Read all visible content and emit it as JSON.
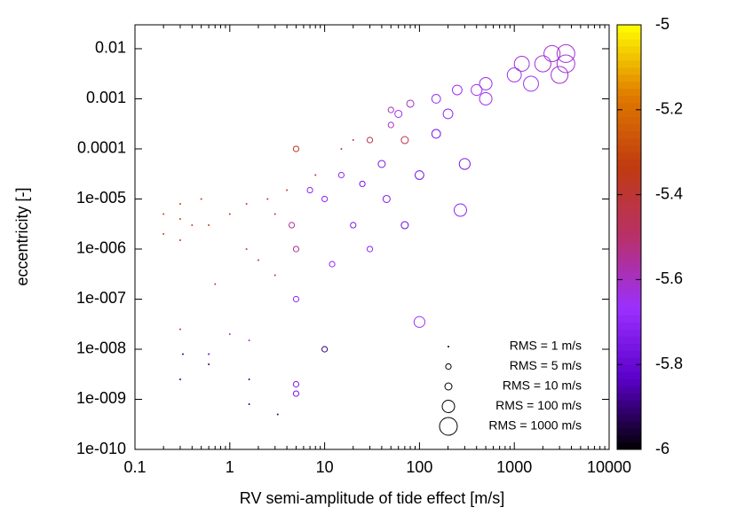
{
  "chart_data": {
    "type": "scatter",
    "xlabel": "RV semi-amplitude of tide effect [m/s]",
    "ylabel": "eccentricity [-]",
    "xscale": "log",
    "yscale": "log",
    "xlim": [
      0.1,
      10000
    ],
    "xticks": [
      0.1,
      1,
      10,
      100,
      1000,
      10000
    ],
    "ylim": [
      1e-10,
      0.03
    ],
    "yticks": [
      {
        "value": 1e-10,
        "label": "1e-010"
      },
      {
        "value": 1e-09,
        "label": "1e-009"
      },
      {
        "value": 1e-08,
        "label": "1e-008"
      },
      {
        "value": 1e-07,
        "label": "1e-007"
      },
      {
        "value": 1e-06,
        "label": "1e-006"
      },
      {
        "value": 1e-05,
        "label": "1e-005"
      },
      0.0001,
      0.001,
      0.01
    ],
    "clim": [
      -6,
      -5
    ],
    "cticks": [
      -6,
      -5.8,
      -5.6,
      -5.4,
      -5.2,
      -5
    ],
    "colormap": [
      "#000000",
      "#5a00c8",
      "#9b30ff",
      "#b8306a",
      "#c03a10",
      "#e07a00",
      "#ffff00"
    ],
    "x": [
      0.2,
      0.2,
      0.3,
      0.3,
      0.3,
      0.3,
      0.3,
      0.32,
      0.4,
      0.5,
      0.6,
      0.6,
      0.6,
      0.7,
      1,
      1,
      1.5,
      1.5,
      1.6,
      1.6,
      1.6,
      2,
      2.5,
      3,
      3,
      3.2,
      4,
      4.5,
      5,
      5,
      5,
      5,
      5,
      7,
      8,
      10,
      10,
      12,
      15,
      15,
      20,
      20,
      25,
      30,
      30,
      40,
      45,
      50,
      50,
      60,
      70,
      70,
      80,
      100,
      100,
      150,
      150,
      200,
      250,
      270,
      300,
      400,
      500,
      500,
      1000,
      1200,
      1500,
      2000,
      2500,
      3000,
      3500,
      3500
    ],
    "values": [
      5e-06,
      2e-06,
      8e-06,
      4e-06,
      1.5e-06,
      2.5e-08,
      2.5e-09,
      8e-09,
      3e-06,
      1e-05,
      3e-06,
      5e-09,
      8e-09,
      2e-07,
      5e-06,
      2e-08,
      8e-06,
      1e-06,
      2.5e-09,
      8e-10,
      1.5e-08,
      6e-07,
      1e-05,
      5e-06,
      3e-07,
      5e-10,
      1.5e-05,
      3e-06,
      1e-06,
      0.0001,
      2e-09,
      1.3e-09,
      1e-07,
      1.5e-05,
      3e-05,
      1e-08,
      1e-05,
      5e-07,
      0.0001,
      3e-05,
      0.00015,
      3e-06,
      2e-05,
      0.00015,
      1e-06,
      5e-05,
      1e-05,
      0.0006,
      0.0003,
      0.0005,
      0.00015,
      3e-06,
      0.0008,
      3.5e-08,
      3e-05,
      0.001,
      0.0002,
      0.0005,
      0.0015,
      6e-06,
      5e-05,
      0.0015,
      0.002,
      0.001,
      0.003,
      0.005,
      0.002,
      0.005,
      0.008,
      0.003,
      0.008,
      0.005
    ],
    "color_values": [
      -5.3,
      -5.3,
      -5.3,
      -5.3,
      -5.35,
      -5.45,
      -5.9,
      -5.9,
      -5.3,
      -5.35,
      -5.35,
      -5.9,
      -5.8,
      -5.4,
      -5.35,
      -5.6,
      -5.38,
      -5.38,
      -5.9,
      -5.9,
      -5.6,
      -5.4,
      -5.38,
      -5.4,
      -5.5,
      -5.9,
      -5.38,
      -5.55,
      -5.55,
      -5.35,
      -5.75,
      -5.75,
      -5.7,
      -5.7,
      -5.4,
      -5.9,
      -5.7,
      -5.7,
      -5.45,
      -5.7,
      -5.4,
      -5.75,
      -5.75,
      -5.45,
      -5.7,
      -5.75,
      -5.75,
      -5.6,
      -5.6,
      -5.65,
      -5.45,
      -5.8,
      -5.6,
      -5.65,
      -5.75,
      -5.65,
      -5.75,
      -5.7,
      -5.65,
      -5.7,
      -5.75,
      -5.65,
      -5.65,
      -5.65,
      -5.65,
      -5.62,
      -5.65,
      -5.62,
      -5.62,
      -5.62,
      -5.62,
      -5.62
    ],
    "sizes": [
      1,
      1,
      1,
      1,
      1,
      1,
      1,
      1,
      1,
      1,
      1,
      1,
      1,
      1,
      1,
      1,
      1,
      1,
      1,
      1,
      1,
      1,
      1,
      1,
      1,
      1,
      1,
      5,
      5,
      5,
      5,
      5,
      5,
      5,
      1,
      5,
      5,
      5,
      1,
      5,
      1,
      5,
      5,
      5,
      5,
      10,
      10,
      5,
      5,
      10,
      10,
      10,
      10,
      50,
      20,
      20,
      20,
      30,
      30,
      100,
      50,
      50,
      100,
      100,
      200,
      300,
      300,
      500,
      500,
      700,
      1000,
      1000
    ],
    "legend": [
      {
        "label": "RMS = 1 m/s",
        "size": 1
      },
      {
        "label": "RMS = 5 m/s",
        "size": 5
      },
      {
        "label": "RMS = 10 m/s",
        "size": 10
      },
      {
        "label": "RMS = 100 m/s",
        "size": 100
      },
      {
        "label": "RMS = 1000 m/s",
        "size": 1000
      }
    ]
  }
}
